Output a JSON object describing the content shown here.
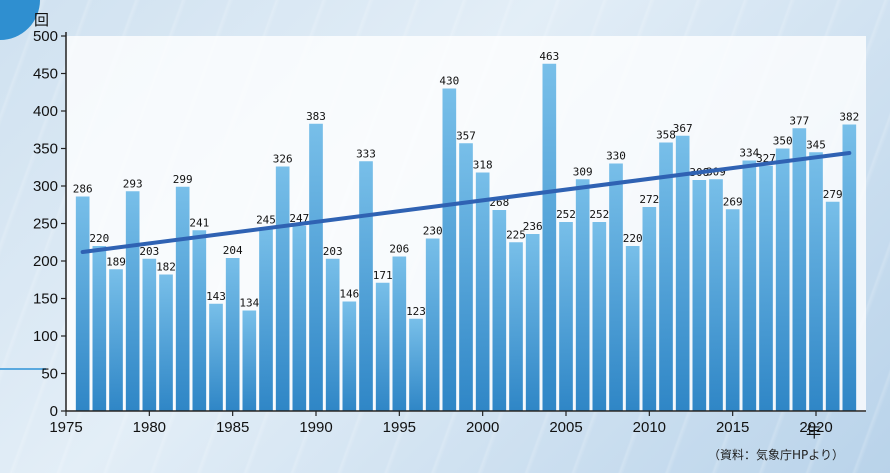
{
  "chart_data": {
    "type": "bar",
    "y_unit_label": "回",
    "x_unit_label": "年",
    "source_note": "（資料：気象庁HPより）",
    "ylim": [
      0,
      500
    ],
    "y_ticks": [
      0,
      50,
      100,
      150,
      200,
      250,
      300,
      350,
      400,
      450,
      500
    ],
    "x_ticks": [
      1975,
      1980,
      1985,
      1990,
      1995,
      2000,
      2005,
      2010,
      2015,
      2020
    ],
    "xlim": [
      1975,
      2023
    ],
    "categories": [
      1976,
      1977,
      1978,
      1979,
      1980,
      1981,
      1982,
      1983,
      1984,
      1985,
      1986,
      1987,
      1988,
      1989,
      1990,
      1991,
      1992,
      1993,
      1994,
      1995,
      1996,
      1997,
      1998,
      1999,
      2000,
      2001,
      2002,
      2003,
      2004,
      2005,
      2006,
      2007,
      2008,
      2009,
      2010,
      2011,
      2012,
      2013,
      2014,
      2015,
      2016,
      2017,
      2018,
      2019,
      2020,
      2021,
      2022
    ],
    "values": [
      286,
      220,
      189,
      293,
      203,
      182,
      299,
      241,
      143,
      204,
      134,
      245,
      326,
      247,
      383,
      203,
      146,
      333,
      171,
      206,
      123,
      230,
      430,
      357,
      318,
      268,
      225,
      236,
      463,
      252,
      309,
      252,
      330,
      220,
      272,
      358,
      367,
      308,
      309,
      269,
      334,
      327,
      350,
      377,
      345,
      279,
      382
    ],
    "trend_line": {
      "x": [
        1976,
        2022
      ],
      "y": [
        212,
        344
      ]
    },
    "grid": false,
    "colors": {
      "bar_top": "#78bfe9",
      "bar_bottom": "#2f86c6",
      "trend": "#2f62b3",
      "axis": "#222222"
    }
  }
}
